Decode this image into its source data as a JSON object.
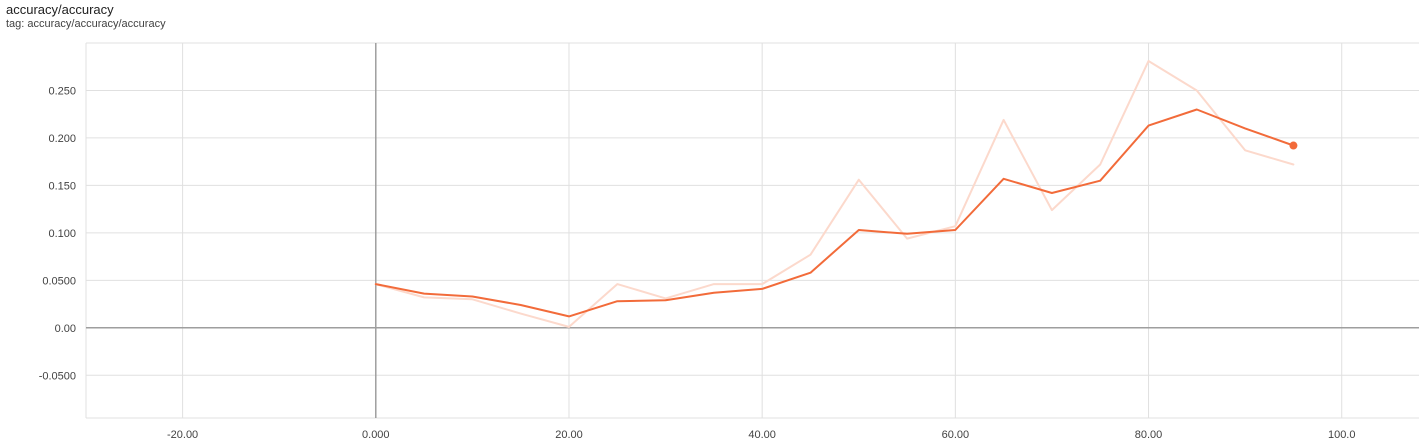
{
  "card": {
    "title": "accuracy/accuracy",
    "tag": "tag: accuracy/accuracy/accuracy"
  },
  "colors": {
    "smoothed": "#f26b3a",
    "raw": "#fcd9cc",
    "grid": "#e0e0e0",
    "zero_axis": "#9e9e9e"
  },
  "chart_data": {
    "type": "line",
    "title": "accuracy/accuracy",
    "xlabel": "",
    "ylabel": "",
    "xlim": [
      -30,
      108
    ],
    "ylim": [
      -0.095,
      0.3
    ],
    "grid": true,
    "legend": "none",
    "x_ticks": [
      -20,
      0,
      20,
      40,
      60,
      80,
      100
    ],
    "x_tick_labels": [
      "-20.00",
      "0.000",
      "20.00",
      "40.00",
      "60.00",
      "80.00",
      "100.0"
    ],
    "y_ticks": [
      -0.05,
      0,
      0.05,
      0.1,
      0.15,
      0.2,
      0.25
    ],
    "y_tick_labels": [
      "-0.0500",
      "0.00",
      "0.0500",
      "0.100",
      "0.150",
      "0.200",
      "0.250"
    ],
    "x": [
      0,
      5,
      10,
      15,
      20,
      25,
      30,
      35,
      40,
      45,
      50,
      55,
      60,
      65,
      70,
      75,
      80,
      85,
      90,
      95
    ],
    "series": [
      {
        "role": "raw",
        "values": [
          0.046,
          0.032,
          0.03,
          0.015,
          0.001,
          0.046,
          0.031,
          0.046,
          0.046,
          0.077,
          0.156,
          0.094,
          0.107,
          0.219,
          0.124,
          0.172,
          0.281,
          0.25,
          0.187,
          0.172
        ]
      },
      {
        "role": "smoothed",
        "values": [
          0.046,
          0.036,
          0.033,
          0.024,
          0.012,
          0.028,
          0.029,
          0.037,
          0.041,
          0.058,
          0.103,
          0.099,
          0.103,
          0.157,
          0.142,
          0.155,
          0.213,
          0.23,
          0.21,
          0.192
        ]
      }
    ]
  }
}
